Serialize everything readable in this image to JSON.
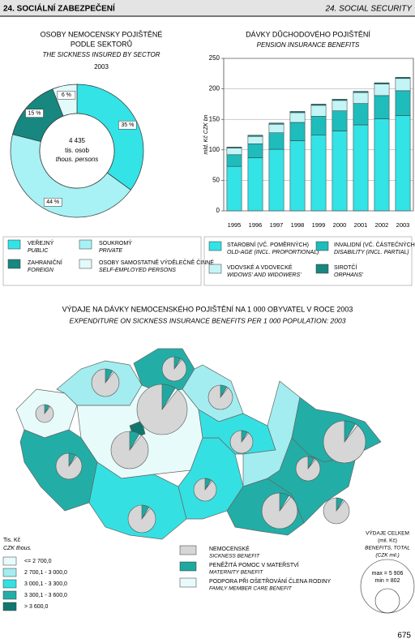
{
  "header": {
    "left": "24. SOCIÁLNÍ ZABEZPEČENÍ",
    "right": "24. SOCIAL SECURITY"
  },
  "chart_data": [
    {
      "type": "pie",
      "title": [
        "OSOBY NEMOCENSKY POJIŠTĚNÉ",
        "PODLE SEKTORŮ"
      ],
      "subtitle": "THE SICKNESS INSURED BY SECTOR",
      "year": "2003",
      "center": {
        "total": "4 435",
        "unit": "tis. osob",
        "unit_en": "thous. persons"
      },
      "categories": [
        "VEŘEJNÝ",
        "SOUKROMÝ",
        "ZAHRANIČNÍ",
        "OSOBY SAMOSTATNĚ VÝDĚLEČNĚ ČINNÉ"
      ],
      "categories_en": [
        "PUBLIC",
        "PRIVATE",
        "FOREIGN",
        "SELF-EMPLOYED PERSONS"
      ],
      "values": [
        35,
        44,
        15,
        6
      ],
      "value_labels": [
        "35 %",
        "44 %",
        "15 %",
        "6 %"
      ],
      "colors": [
        "#33e3e6",
        "#a8f1f4",
        "#17877f",
        "#e2fafa"
      ]
    },
    {
      "type": "bar",
      "stacked": true,
      "title": "DÁVKY DŮCHODOVÉHO POJIŠTĚNÍ",
      "subtitle": "PENSION INSURANCE BENEFITS",
      "y_label": "mld. Kč    CZK bn",
      "categories": [
        "1995",
        "1996",
        "1997",
        "1998",
        "1999",
        "2000",
        "2001",
        "2002",
        "2003"
      ],
      "series": [
        {
          "name": "STAROBNÍ (VČ. POMĚRNÝCH)",
          "name_en": "OLD-AGE (INCL. PROPORTIONAL)",
          "color": "#33e3e6",
          "values": [
            73,
            87,
            101,
            115,
            124,
            131,
            141,
            151,
            156
          ]
        },
        {
          "name": "INVALIDNÍ (VČ. ČÁSTEČNÝCH)",
          "name_en": "DISABILITY (INCL. PARTIAL)",
          "color": "#1fbcbc",
          "values": [
            19,
            23,
            27,
            30,
            31,
            33,
            35,
            38,
            41
          ]
        },
        {
          "name": "VDOVSKÉ A VDOVECKÉ",
          "name_en": "WIDOWS' AND WIDOWERS'",
          "color": "#c4f5f6",
          "values": [
            11,
            12,
            14,
            16,
            18,
            17,
            18,
            19,
            20
          ]
        },
        {
          "name": "SIROTČÍ",
          "name_en": "ORPHANS'",
          "color": "#17877f",
          "values": [
            1.5,
            2,
            2,
            2,
            2,
            2,
            2,
            2,
            2
          ]
        }
      ],
      "ylim": [
        0,
        250
      ],
      "yticks": [
        0,
        50,
        100,
        150,
        200,
        250
      ],
      "grid": true
    }
  ],
  "map": {
    "title": "VÝDAJE NA DÁVKY NEMOCENSKÉHO POJIŠTĚNÍ NA 1 000 OBYVATEL V ROCE 2003",
    "subtitle": "EXPENDITURE ON SICKNESS INSURANCE BENEFITS PER 1 000 POPULATION: 2003",
    "legend_unit": "Tis. Kč",
    "legend_unit_en": "CZK thous.",
    "classes": [
      "<= 2 700,0",
      "2 700,1 - 3 000,0",
      "3 000,1 - 3 300,0",
      "3 300,1 - 3 600,0",
      "> 3 600,0"
    ],
    "class_colors": [
      "#e8fbfb",
      "#a3edf0",
      "#35e0e2",
      "#22aea6",
      "#10776f"
    ],
    "pie_legend": [
      {
        "name": "NEMOCENSKÉ",
        "name_en": "SICKNESS BENEFIT"
      },
      {
        "name": "PENĚŽITÁ POMOC V MATEŘSTVÍ",
        "name_en": "MATERNITY BENEFIT"
      },
      {
        "name": "PODPORA PŘI OŠETŘOVÁNÍ ČLENA RODINY",
        "name_en": "FAMILY MEMBER CARE BENEFIT"
      }
    ],
    "size_legend": {
      "title": "VÝDAJE CELKEM",
      "unit": "(mil. Kč)",
      "title_en": "BENEFITS, TOTAL",
      "unit_en": "(CZK mil.)",
      "max": "max = 5 906",
      "min": "min = 802"
    }
  },
  "page_number": "675"
}
